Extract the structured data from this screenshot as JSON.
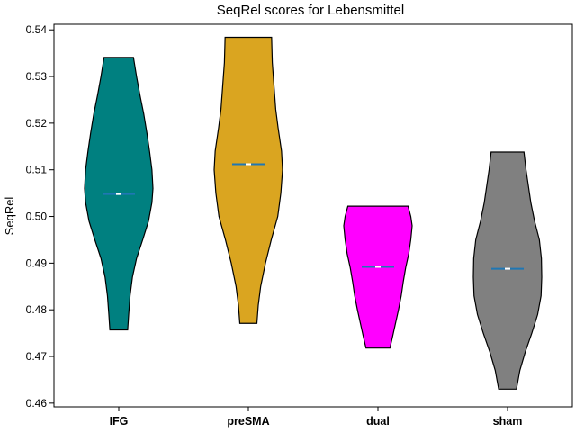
{
  "chart_data": {
    "type": "violin",
    "title": "SeqRel scores for Lebensmittel",
    "xlabel": "",
    "ylabel": "SeqRel",
    "ylim": [
      0.4592,
      0.5412
    ],
    "yticks": [
      0.46,
      0.47,
      0.48,
      0.49,
      0.5,
      0.51,
      0.52,
      0.53,
      0.54
    ],
    "ytick_labels": [
      "0.46",
      "0.47",
      "0.48",
      "0.49",
      "0.50",
      "0.51",
      "0.52",
      "0.53",
      "0.54"
    ],
    "grid": false,
    "categories": [
      "IFG",
      "preSMA",
      "dual",
      "sham"
    ],
    "series": [
      {
        "category": "IFG",
        "color": "#008080",
        "min": 0.4757,
        "max": 0.5341,
        "median": 0.5048,
        "profile": [
          [
            0.4757,
            0.26
          ],
          [
            0.479,
            0.29
          ],
          [
            0.483,
            0.33
          ],
          [
            0.487,
            0.4
          ],
          [
            0.491,
            0.52
          ],
          [
            0.495,
            0.7
          ],
          [
            0.499,
            0.87
          ],
          [
            0.503,
            0.97
          ],
          [
            0.506,
            1.0
          ],
          [
            0.51,
            0.97
          ],
          [
            0.514,
            0.9
          ],
          [
            0.518,
            0.82
          ],
          [
            0.522,
            0.73
          ],
          [
            0.526,
            0.62
          ],
          [
            0.53,
            0.52
          ],
          [
            0.5341,
            0.43
          ]
        ]
      },
      {
        "category": "preSMA",
        "color": "#DAA520",
        "min": 0.4771,
        "max": 0.5384,
        "median": 0.5112,
        "profile": [
          [
            0.4771,
            0.25
          ],
          [
            0.481,
            0.29
          ],
          [
            0.485,
            0.36
          ],
          [
            0.49,
            0.5
          ],
          [
            0.495,
            0.67
          ],
          [
            0.5,
            0.86
          ],
          [
            0.505,
            0.95
          ],
          [
            0.51,
            1.0
          ],
          [
            0.514,
            0.97
          ],
          [
            0.519,
            0.87
          ],
          [
            0.523,
            0.8
          ],
          [
            0.528,
            0.75
          ],
          [
            0.533,
            0.7
          ],
          [
            0.5384,
            0.68
          ]
        ]
      },
      {
        "category": "dual",
        "color": "#FF00FF",
        "min": 0.4718,
        "max": 0.5022,
        "median": 0.4892,
        "profile": [
          [
            0.4718,
            0.35
          ],
          [
            0.474,
            0.42
          ],
          [
            0.477,
            0.51
          ],
          [
            0.48,
            0.6
          ],
          [
            0.483,
            0.68
          ],
          [
            0.486,
            0.74
          ],
          [
            0.489,
            0.81
          ],
          [
            0.492,
            0.9
          ],
          [
            0.495,
            0.96
          ],
          [
            0.498,
            1.0
          ],
          [
            0.5,
            0.96
          ],
          [
            0.5022,
            0.88
          ]
        ]
      },
      {
        "category": "sham",
        "color": "#808080",
        "min": 0.463,
        "max": 0.5138,
        "median": 0.4888,
        "profile": [
          [
            0.463,
            0.26
          ],
          [
            0.467,
            0.36
          ],
          [
            0.471,
            0.52
          ],
          [
            0.475,
            0.71
          ],
          [
            0.479,
            0.88
          ],
          [
            0.483,
            0.98
          ],
          [
            0.487,
            1.0
          ],
          [
            0.491,
            0.99
          ],
          [
            0.495,
            0.93
          ],
          [
            0.499,
            0.79
          ],
          [
            0.503,
            0.68
          ],
          [
            0.507,
            0.6
          ],
          [
            0.51,
            0.54
          ],
          [
            0.5138,
            0.48
          ]
        ]
      }
    ]
  }
}
